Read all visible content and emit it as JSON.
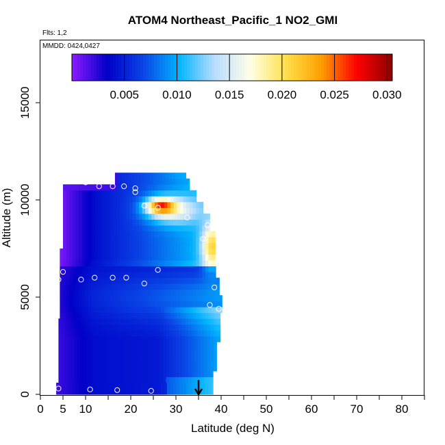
{
  "chart_data": {
    "type": "heatmap",
    "title": "ATOM4 Northeast_Pacific_1 NO2_GMI",
    "flights_note": "Flts: 1,2",
    "dates_note": "MMDD: 0424,0427",
    "xlabel": "Latitude (deg N)",
    "ylabel": "Altitude (m)",
    "xlim": [
      0,
      85
    ],
    "ylim": [
      0,
      17500
    ],
    "x_ticks": [
      0,
      5,
      10,
      20,
      30,
      40,
      50,
      60,
      70,
      80
    ],
    "y_ticks": [
      0,
      5000,
      10000,
      15000
    ],
    "colorbar": {
      "min": 0.0,
      "max": 0.0305,
      "ticks": [
        0.005,
        0.01,
        0.015,
        0.02,
        0.025,
        0.03
      ],
      "tick_labels": [
        "0.005",
        "0.010",
        "0.015",
        "0.020",
        "0.025",
        "0.030"
      ],
      "colors": [
        "#8c1aff",
        "#0000c8",
        "#0a44e6",
        "#00b4ff",
        "#b8dcff",
        "#ffffe6",
        "#ffe14d",
        "#ff9f00",
        "#ff0000",
        "#8b0000"
      ]
    },
    "arrow_marker_latitude": 35,
    "sample_points": [
      {
        "lat": 4,
        "alt": 300
      },
      {
        "lat": 11,
        "alt": 250
      },
      {
        "lat": 17,
        "alt": 220
      },
      {
        "lat": 24.5,
        "alt": 180
      },
      {
        "lat": 4,
        "alt": 5900
      },
      {
        "lat": 5,
        "alt": 6300
      },
      {
        "lat": 9,
        "alt": 5900
      },
      {
        "lat": 12,
        "alt": 6000
      },
      {
        "lat": 16,
        "alt": 6000
      },
      {
        "lat": 19,
        "alt": 6000
      },
      {
        "lat": 23,
        "alt": 5700
      },
      {
        "lat": 26,
        "alt": 6400
      },
      {
        "lat": 37.5,
        "alt": 4600
      },
      {
        "lat": 38.5,
        "alt": 5500
      },
      {
        "lat": 39.5,
        "alt": 4400
      },
      {
        "lat": 6,
        "alt": 11300
      },
      {
        "lat": 7.5,
        "alt": 11300
      },
      {
        "lat": 8,
        "alt": 11300
      },
      {
        "lat": 14.5,
        "alt": 11300
      },
      {
        "lat": 10,
        "alt": 10900
      },
      {
        "lat": 13,
        "alt": 10700
      },
      {
        "lat": 16,
        "alt": 10700
      },
      {
        "lat": 18.5,
        "alt": 10700
      },
      {
        "lat": 21,
        "alt": 10600
      },
      {
        "lat": 21,
        "alt": 10400
      },
      {
        "lat": 23,
        "alt": 9700
      },
      {
        "lat": 26,
        "alt": 9600
      },
      {
        "lat": 31,
        "alt": 9500
      },
      {
        "lat": 32.5,
        "alt": 9100
      },
      {
        "lat": 37,
        "alt": 8700
      },
      {
        "lat": 36,
        "alt": 8000
      }
    ]
  }
}
